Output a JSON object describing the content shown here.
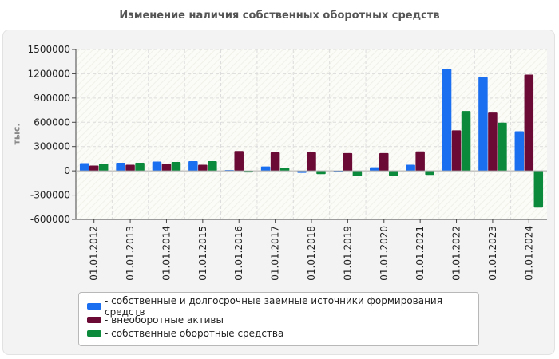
{
  "colors": {
    "series1": "#1a6ef0",
    "series2": "#6a0a35",
    "series3": "#0a8a3a"
  },
  "chart_data": {
    "type": "bar",
    "title": "Изменение наличия собственных оборотных средств",
    "ylabel": "тыс.",
    "xlabel": "",
    "ylim": [
      -600000,
      1500000
    ],
    "yticks": [
      -600000,
      -300000,
      0,
      300000,
      600000,
      900000,
      1200000,
      1500000
    ],
    "ytick_labels": [
      "-600000",
      "-300000",
      "0",
      "300000",
      "600000",
      "900000",
      "1200000",
      "1500000"
    ],
    "grid": true,
    "legend_position": "bottom",
    "categories": [
      "01.01.2012",
      "01.01.2013",
      "01.01.2014",
      "01.01.2015",
      "01.01.2016",
      "01.01.2017",
      "01.01.2018",
      "01.01.2019",
      "01.01.2020",
      "01.01.2021",
      "01.01.2022",
      "01.01.2023",
      "01.01.2024"
    ],
    "series": [
      {
        "name": "- собственные и долгосрочные заемные источники формирования средств",
        "color": "#1a6ef0",
        "values": [
          95000,
          100000,
          115000,
          120000,
          10000,
          55000,
          -25000,
          -15000,
          45000,
          75000,
          1260000,
          1160000,
          490000
        ]
      },
      {
        "name": "- внеоборотные активы",
        "color": "#6a0a35",
        "values": [
          65000,
          75000,
          85000,
          75000,
          245000,
          230000,
          230000,
          220000,
          220000,
          240000,
          500000,
          720000,
          1190000
        ]
      },
      {
        "name": "- собственные оборотные средства",
        "color": "#0a8a3a",
        "values": [
          90000,
          100000,
          110000,
          120000,
          -20000,
          35000,
          -40000,
          -65000,
          -60000,
          -50000,
          740000,
          595000,
          -455000
        ]
      }
    ]
  }
}
